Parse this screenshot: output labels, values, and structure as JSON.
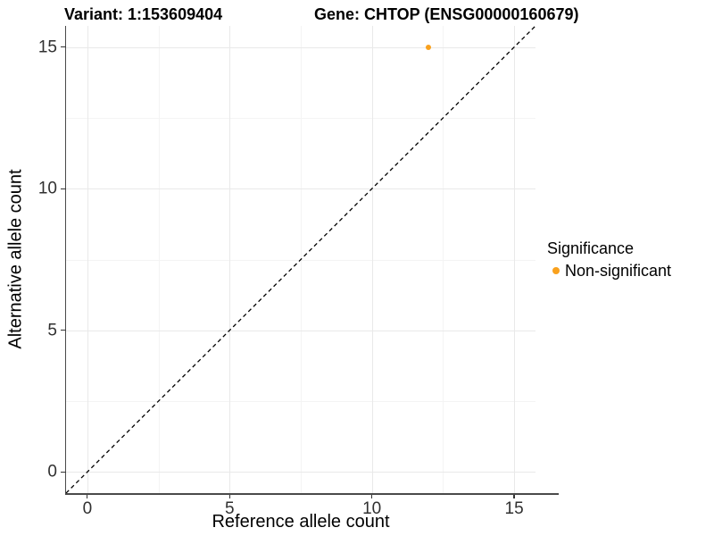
{
  "chart_data": {
    "type": "scatter",
    "title_left": "Variant: 1:153609404",
    "title_right": "Gene: CHTOP (ENSG00000160679)",
    "xlabel": "Reference allele count",
    "ylabel": "Alternative allele count",
    "xlim": [
      -0.75,
      15.75
    ],
    "ylim": [
      -0.75,
      15.75
    ],
    "x_ticks": [
      0,
      5,
      10,
      15
    ],
    "y_ticks": [
      0,
      5,
      10,
      15
    ],
    "x_minor": [
      2.5,
      7.5,
      12.5
    ],
    "y_minor": [
      2.5,
      7.5,
      12.5
    ],
    "grid": true,
    "identity_line": {
      "slope": 1,
      "intercept": 0,
      "style": "dashed",
      "color": "#000000"
    },
    "series": [
      {
        "name": "Non-significant",
        "color": "#F9A11D",
        "points": [
          {
            "x": 12,
            "y": 15
          }
        ]
      }
    ],
    "legend": {
      "title": "Significance",
      "position": "right",
      "items": [
        {
          "label": "Non-significant",
          "color": "#F9A11D"
        }
      ]
    },
    "colors": {
      "grid_major": "#E9E9E9",
      "grid_minor": "#F4F4F4",
      "axis_line": "#4A4A4A",
      "tick_mark": "#333333",
      "tick_label": "#303030",
      "text": "#000000"
    }
  }
}
